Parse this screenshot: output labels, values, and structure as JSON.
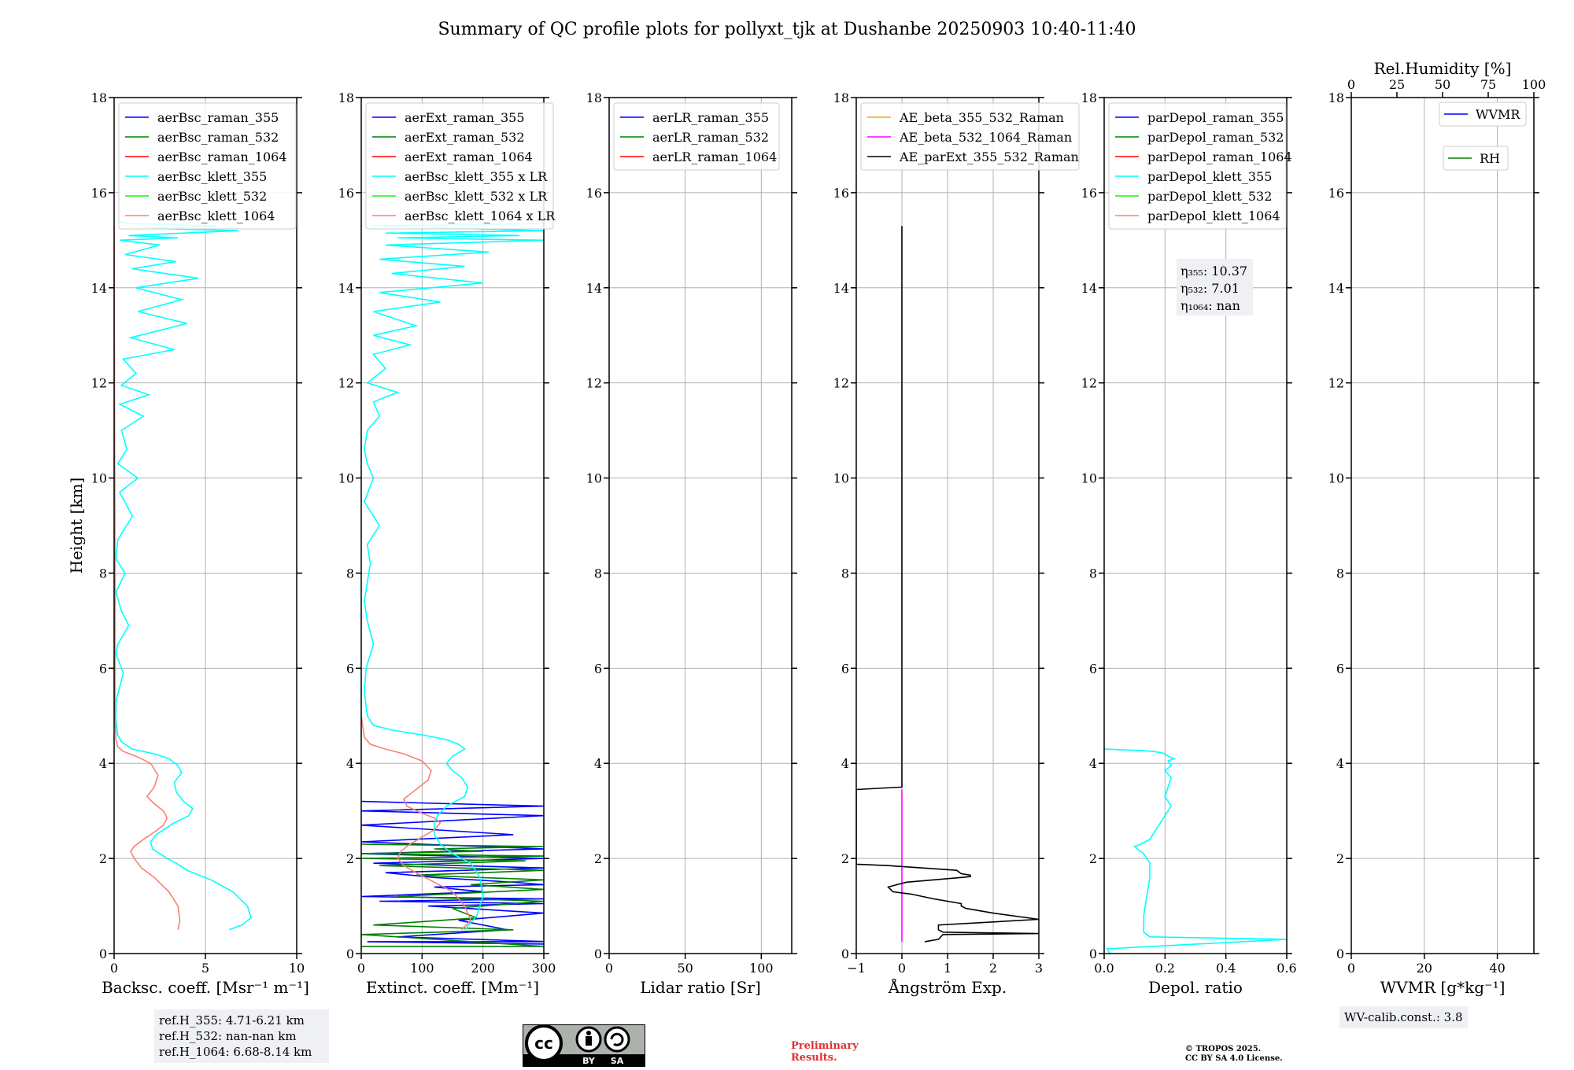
{
  "chart_data": [
    {
      "type": "line",
      "panel": "backscatter",
      "title": "Summary of QC profile plots for pollyxt_tjk at Dushanbe 20250903 10:40-11:40",
      "xlabel": "Backsc. coeff. [Msr⁻¹ m⁻¹]",
      "ylabel": "Height [km]",
      "xlim": [
        0,
        10
      ],
      "ylim": [
        0,
        18
      ],
      "xticks": [
        "0",
        "5",
        "10"
      ],
      "yticks": [
        "0",
        "2",
        "4",
        "6",
        "8",
        "10",
        "12",
        "14",
        "16",
        "18"
      ],
      "grid": true,
      "legend_position": "top-right",
      "series": [
        {
          "name": "aerBsc_raman_355",
          "color": "#0000ff",
          "x": [],
          "y": []
        },
        {
          "name": "aerBsc_raman_532",
          "color": "#008000",
          "x": [],
          "y": []
        },
        {
          "name": "aerBsc_raman_1064",
          "color": "#ff0000",
          "x": [],
          "y": []
        },
        {
          "name": "aerBsc_klett_355",
          "color": "#00ffff",
          "x": [
            6.3,
            7.0,
            7.5,
            7.3,
            6.5,
            5.3,
            4.0,
            3.4,
            2.9,
            2.5,
            2.1,
            2.0,
            2.3,
            3.3,
            4.1,
            4.3,
            3.8,
            3.4,
            3.3,
            3.7,
            3.5,
            3.0,
            2.2,
            1.0,
            0.4,
            0.2,
            0.1,
            0.1,
            0.3,
            0.5,
            0.1,
            0.2,
            0.8,
            0.4,
            0.1,
            0.6,
            0.1,
            0.2,
            1.0,
            0.3,
            1.3,
            0.2,
            0.7,
            0.4,
            1.6,
            0.3,
            1.9,
            0.4,
            1.2,
            0.5,
            3.3,
            0.9,
            4.0,
            1.3,
            3.7,
            1.2,
            4.6,
            1.0,
            3.4,
            0.6,
            2.5,
            0.3,
            3.5,
            0.8,
            6.8,
            2.0,
            5.6,
            1.0,
            0.3
          ],
          "y": [
            0.5,
            0.6,
            0.75,
            1.0,
            1.3,
            1.55,
            1.75,
            1.9,
            2.0,
            2.1,
            2.2,
            2.35,
            2.5,
            2.75,
            2.9,
            3.05,
            3.2,
            3.4,
            3.6,
            3.8,
            3.95,
            4.1,
            4.2,
            4.3,
            4.45,
            4.6,
            4.9,
            5.3,
            5.6,
            5.9,
            6.3,
            6.5,
            6.9,
            7.2,
            7.6,
            8.0,
            8.3,
            8.7,
            9.2,
            9.7,
            10.0,
            10.3,
            10.6,
            11.0,
            11.3,
            11.55,
            11.75,
            11.95,
            12.2,
            12.5,
            12.7,
            12.95,
            13.25,
            13.5,
            13.75,
            14.0,
            14.2,
            14.4,
            14.55,
            14.7,
            14.9,
            15.0,
            15.05,
            15.1,
            15.2,
            15.25,
            15.3,
            15.35,
            15.38
          ]
        },
        {
          "name": "aerBsc_klett_532",
          "color": "#00ff00",
          "x": [],
          "y": []
        },
        {
          "name": "aerBsc_klett_1064",
          "color": "#fa8072",
          "x": [
            3.5,
            3.6,
            3.5,
            3.0,
            2.2,
            1.5,
            1.1,
            0.9,
            1.1,
            1.6,
            2.2,
            2.7,
            2.9,
            2.7,
            2.2,
            1.8,
            2.2,
            2.4,
            2.0,
            1.2,
            0.5,
            0.2,
            0.1,
            0.05,
            0.05,
            0.0
          ],
          "y": [
            0.5,
            0.7,
            1.0,
            1.3,
            1.6,
            1.8,
            2.0,
            2.15,
            2.25,
            2.4,
            2.55,
            2.7,
            2.85,
            3.0,
            3.15,
            3.3,
            3.5,
            3.75,
            4.0,
            4.15,
            4.25,
            4.35,
            4.5,
            5.0,
            8.0,
            15.3
          ]
        }
      ]
    },
    {
      "type": "line",
      "panel": "extinction",
      "xlabel": "Extinct. coeff. [Mm⁻¹]",
      "xlim": [
        0,
        300
      ],
      "ylim": [
        0,
        18
      ],
      "xticks": [
        "0",
        "100",
        "200",
        "300"
      ],
      "yticks": [
        "0",
        "2",
        "4",
        "6",
        "8",
        "10",
        "12",
        "14",
        "16",
        "18"
      ],
      "grid": true,
      "legend_position": "top-left",
      "series": [
        {
          "name": "aerExt_raman_355",
          "color": "#0000ff",
          "x": [
            300,
            10,
            310,
            60,
            240,
            160,
            300,
            110,
            300,
            30,
            300,
            0,
            200,
            120,
            300,
            250,
            120,
            40,
            300,
            20,
            300,
            0,
            300,
            0,
            250,
            0,
            300,
            0,
            300,
            0
          ],
          "y": [
            0.2,
            0.25,
            0.25,
            0.35,
            0.5,
            0.7,
            0.85,
            1.0,
            1.05,
            1.1,
            1.15,
            1.2,
            1.3,
            1.4,
            1.45,
            1.5,
            1.6,
            1.7,
            1.8,
            1.9,
            2.0,
            2.1,
            2.2,
            2.35,
            2.5,
            2.7,
            2.9,
            3.0,
            3.1,
            3.2
          ]
        },
        {
          "name": "aerExt_raman_532",
          "color": "#008000",
          "x": [
            0,
            300,
            0,
            250,
            20,
            190,
            150,
            300,
            60,
            300,
            180,
            300,
            90,
            300,
            30,
            270,
            0,
            300,
            0,
            200,
            120,
            300,
            0
          ],
          "y": [
            0.15,
            0.15,
            0.4,
            0.5,
            0.6,
            0.75,
            0.95,
            1.1,
            1.2,
            1.35,
            1.45,
            1.55,
            1.65,
            1.75,
            1.85,
            1.95,
            2.0,
            2.05,
            2.1,
            2.15,
            2.2,
            2.25,
            2.3
          ]
        },
        {
          "name": "aerExt_raman_1064",
          "color": "#ff0000",
          "x": [],
          "y": []
        },
        {
          "name": "aerBsc_klett_355 x LR",
          "color": "#00ffff",
          "x": [
            170,
            190,
            200,
            195,
            180,
            150,
            130,
            120,
            120,
            125,
            140,
            170,
            175,
            165,
            150,
            140,
            150,
            170,
            160,
            140,
            100,
            50,
            20,
            10,
            5,
            8,
            20,
            10,
            5,
            10,
            15,
            10,
            30,
            5,
            20,
            10,
            5,
            10,
            30,
            20,
            60,
            10,
            40,
            20,
            80,
            20,
            90,
            20,
            130,
            30,
            200,
            50,
            170,
            30,
            210,
            40,
            300,
            60,
            260,
            40,
            300,
            20,
            300
          ],
          "y": [
            0.5,
            0.8,
            1.2,
            1.6,
            1.9,
            2.1,
            2.3,
            2.5,
            2.7,
            2.9,
            3.1,
            3.3,
            3.5,
            3.7,
            3.85,
            4.0,
            4.15,
            4.3,
            4.4,
            4.5,
            4.6,
            4.7,
            4.8,
            5.0,
            5.5,
            6.0,
            6.5,
            7.0,
            7.4,
            7.8,
            8.2,
            8.6,
            9.0,
            9.5,
            10.0,
            10.3,
            10.6,
            11.0,
            11.3,
            11.6,
            11.8,
            12.0,
            12.3,
            12.6,
            12.8,
            13.0,
            13.2,
            13.5,
            13.7,
            13.9,
            14.1,
            14.3,
            14.45,
            14.6,
            14.75,
            14.9,
            15.0,
            15.05,
            15.1,
            15.15,
            15.2,
            15.3,
            15.35
          ]
        },
        {
          "name": "aerBsc_klett_532 x LR",
          "color": "#00ff00",
          "x": [],
          "y": []
        },
        {
          "name": "aerBsc_klett_1064 x LR",
          "color": "#fa8072",
          "x": [
            165,
            180,
            170,
            150,
            120,
            90,
            70,
            60,
            65,
            80,
            100,
            120,
            130,
            120,
            100,
            75,
            70,
            90,
            110,
            115,
            100,
            70,
            40,
            15,
            5,
            0
          ],
          "y": [
            0.5,
            0.7,
            1.0,
            1.3,
            1.5,
            1.7,
            1.85,
            2.0,
            2.15,
            2.3,
            2.45,
            2.6,
            2.75,
            2.85,
            2.95,
            3.1,
            3.25,
            3.45,
            3.65,
            3.85,
            4.05,
            4.2,
            4.3,
            4.4,
            4.55,
            5.0
          ]
        }
      ]
    },
    {
      "type": "line",
      "panel": "lidar-ratio",
      "xlabel": "Lidar ratio [Sr]",
      "xlim": [
        0,
        120
      ],
      "ylim": [
        0,
        18
      ],
      "xticks": [
        "0",
        "50",
        "100"
      ],
      "yticks": [
        "0",
        "2",
        "4",
        "6",
        "8",
        "10",
        "12",
        "14",
        "16",
        "18"
      ],
      "grid": true,
      "legend_position": "top-left",
      "series": [
        {
          "name": "aerLR_raman_355",
          "color": "#0000ff",
          "x": [],
          "y": []
        },
        {
          "name": "aerLR_raman_532",
          "color": "#008000",
          "x": [],
          "y": []
        },
        {
          "name": "aerLR_raman_1064",
          "color": "#ff0000",
          "x": [],
          "y": []
        }
      ]
    },
    {
      "type": "line",
      "panel": "angstrom",
      "xlabel": "Ångström Exp.",
      "xlim": [
        -1,
        3
      ],
      "ylim": [
        0,
        18
      ],
      "xticks": [
        "−1",
        "0",
        "1",
        "2",
        "3"
      ],
      "yticks": [
        "0",
        "2",
        "4",
        "6",
        "8",
        "10",
        "12",
        "14",
        "16",
        "18"
      ],
      "grid": true,
      "legend_position": "top-left",
      "series": [
        {
          "name": "AE_beta_355_532_Raman",
          "color": "#ffa500",
          "x": [],
          "y": []
        },
        {
          "name": "AE_beta_532_1064_Raman",
          "color": "#ff00ff",
          "x": [
            0,
            0
          ],
          "y": [
            0.25,
            3.45
          ]
        },
        {
          "name": "AE_parExt_355_532_Raman",
          "color": "#000000",
          "x": [
            0.5,
            0.8,
            0.9,
            3.0,
            0.9,
            0.8,
            0.8,
            3.0,
            2.0,
            1.4,
            1.3,
            1.3,
            0.7,
            0.2,
            -0.2,
            -0.3,
            0.1,
            0.7,
            1.3,
            1.5,
            1.5,
            1.3,
            1.2,
            -0.3,
            -1.0,
            -1.0,
            0,
            0
          ],
          "y": [
            0.25,
            0.3,
            0.4,
            0.42,
            0.45,
            0.5,
            0.6,
            0.72,
            0.85,
            0.95,
            1.0,
            1.05,
            1.15,
            1.25,
            1.3,
            1.4,
            1.5,
            1.55,
            1.6,
            1.62,
            1.65,
            1.68,
            1.75,
            1.85,
            1.88,
            3.45,
            3.5,
            15.3
          ]
        }
      ]
    },
    {
      "type": "line",
      "panel": "depolarization",
      "xlabel": "Depol. ratio",
      "xlim": [
        0,
        0.6
      ],
      "ylim": [
        0,
        18
      ],
      "xticks": [
        "0.0",
        "0.2",
        "0.4",
        "0.6"
      ],
      "yticks": [
        "0",
        "2",
        "4",
        "6",
        "8",
        "10",
        "12",
        "14",
        "16",
        "18"
      ],
      "grid": true,
      "legend_position": "top-left",
      "annotations": [
        "η₃₅₅: 10.37",
        "η₅₃₂: 7.01",
        "η₁₀₆₄: nan"
      ],
      "series": [
        {
          "name": "parDepol_raman_355",
          "color": "#0000ff",
          "x": [],
          "y": []
        },
        {
          "name": "parDepol_raman_532",
          "color": "#008000",
          "x": [],
          "y": []
        },
        {
          "name": "parDepol_raman_1064",
          "color": "#ff0000",
          "x": [],
          "y": []
        },
        {
          "name": "parDepol_klett_355",
          "color": "#00ffff",
          "x": [
            0.02,
            0.01,
            0.6,
            0.15,
            0.13,
            0.13,
            0.14,
            0.15,
            0.15,
            0.13,
            0.11,
            0.1,
            0.12,
            0.15,
            0.17,
            0.2,
            0.22,
            0.2,
            0.21,
            0.22,
            0.2,
            0.22,
            0.21,
            0.23,
            0.21,
            0.2,
            0.19,
            0.16,
            0.12,
            0.08,
            0.04,
            0.0
          ],
          "y": [
            0.0,
            0.1,
            0.3,
            0.35,
            0.45,
            0.8,
            1.2,
            1.6,
            1.9,
            2.1,
            2.2,
            2.25,
            2.3,
            2.4,
            2.6,
            2.9,
            3.1,
            3.3,
            3.5,
            3.7,
            3.85,
            3.95,
            4.05,
            4.1,
            4.15,
            4.2,
            4.22,
            4.25,
            4.27,
            4.28,
            4.29,
            4.3
          ]
        },
        {
          "name": "parDepol_klett_532",
          "color": "#00ff00",
          "x": [],
          "y": []
        },
        {
          "name": "parDepol_klett_1064",
          "color": "#fa8072",
          "x": [],
          "y": []
        }
      ]
    },
    {
      "type": "line",
      "panel": "water-vapor",
      "xlabel": "WVMR [g*kg⁻¹]",
      "top_xlabel": "Rel.Humidity [%]",
      "xlim": [
        0,
        50
      ],
      "ylim": [
        0,
        18
      ],
      "top_xlim": [
        0,
        100
      ],
      "xticks": [
        "0",
        "20",
        "40"
      ],
      "top_xticks": [
        "0",
        "25",
        "50",
        "75",
        "100"
      ],
      "yticks": [
        "0",
        "2",
        "4",
        "6",
        "8",
        "10",
        "12",
        "14",
        "16",
        "18"
      ],
      "grid": true,
      "legend_position": "top-right",
      "series": [
        {
          "name": "WVMR",
          "color": "#0000ff",
          "x": [],
          "y": []
        },
        {
          "name": "RH",
          "color": "#008000",
          "x": [],
          "y": []
        }
      ]
    }
  ],
  "footer": {
    "ref_lines": [
      "ref.H_355: 4.71-6.21 km",
      "ref.H_532: nan-nan km",
      "ref.H_1064: 6.68-8.14 km"
    ],
    "wv_calib": "WV-calib.const.: 3.8",
    "preliminary": [
      "Preliminary",
      "Results."
    ],
    "copyright": [
      "© TROPOS 2025.",
      "CC BY SA 4.0 License."
    ],
    "license_logo": {
      "cc": "cc",
      "by": "BY",
      "sa": "SA"
    }
  },
  "colors": {
    "grid": "#b0b0b0",
    "legend_border": "#cccccc",
    "box_bg": "#eef0f4",
    "preliminary": "#e03030"
  }
}
